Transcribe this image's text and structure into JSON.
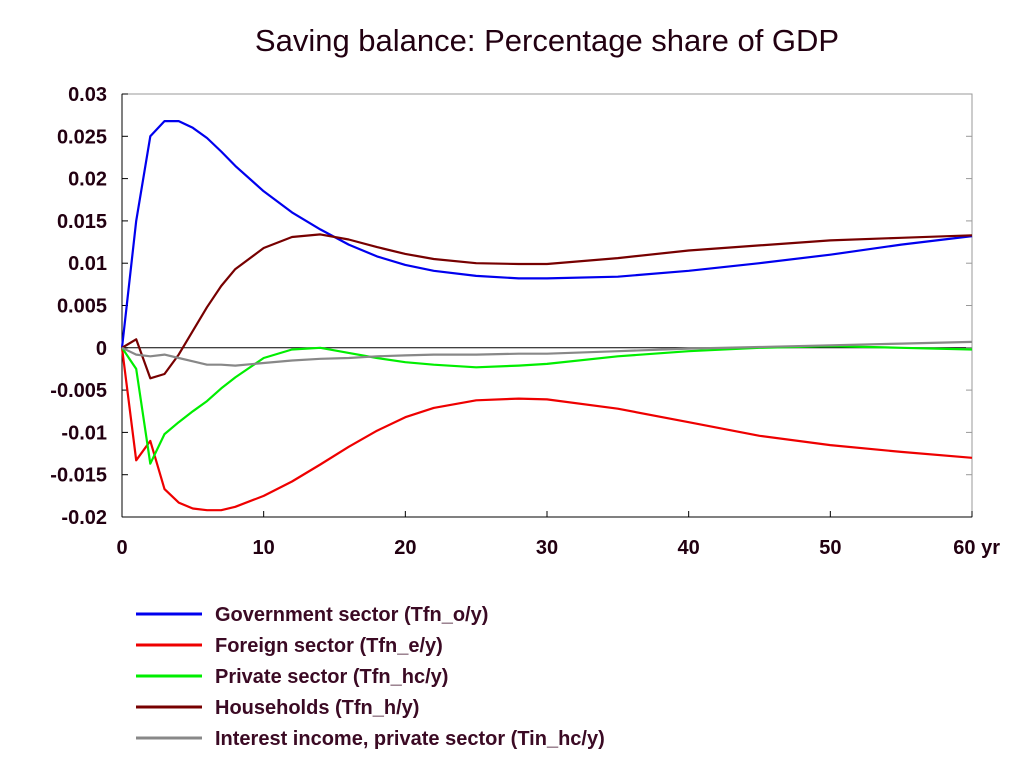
{
  "chart_data": {
    "type": "line",
    "title": "Saving balance: Percentage share of GDP",
    "xlabel": "",
    "ylabel": "",
    "xlim": [
      0,
      60
    ],
    "ylim": [
      -0.02,
      0.03
    ],
    "x_ticks": [
      0,
      10,
      20,
      30,
      40,
      50,
      60
    ],
    "x_tick_labels": [
      "0",
      "10",
      "20",
      "30",
      "40",
      "50",
      "60 yr"
    ],
    "y_ticks": [
      0.03,
      0.025,
      0.02,
      0.015,
      0.01,
      0.005,
      0,
      -0.005,
      -0.01,
      -0.015,
      -0.02
    ],
    "y_tick_labels": [
      "0.03",
      "0.025",
      "0.02",
      "0.015",
      "0.01",
      "0.005",
      "0",
      "-0.005",
      "-0.01",
      "-0.015",
      "-0.02"
    ],
    "grid": false,
    "zero_line": true,
    "legend_position": "bottom",
    "x": [
      0,
      1,
      2,
      3,
      4,
      5,
      6,
      7,
      8,
      10,
      12,
      14,
      16,
      18,
      20,
      22,
      25,
      28,
      30,
      35,
      40,
      45,
      50,
      55,
      60
    ],
    "series": [
      {
        "name": "Government sector (Tfn_o/y)",
        "color": "#0000ee",
        "values": [
          0.0,
          0.015,
          0.025,
          0.0268,
          0.0268,
          0.026,
          0.0248,
          0.0232,
          0.0215,
          0.0185,
          0.016,
          0.014,
          0.0122,
          0.0108,
          0.0098,
          0.0091,
          0.0085,
          0.0082,
          0.0082,
          0.0084,
          0.0091,
          0.01,
          0.011,
          0.0122,
          0.0132
        ]
      },
      {
        "name": "Foreign sector (Tfn_e/y)",
        "color": "#ee0000",
        "values": [
          0.0,
          -0.0133,
          -0.011,
          -0.0167,
          -0.0183,
          -0.019,
          -0.0192,
          -0.0192,
          -0.0188,
          -0.0175,
          -0.0158,
          -0.0138,
          -0.0117,
          -0.0098,
          -0.0082,
          -0.0071,
          -0.0062,
          -0.006,
          -0.0061,
          -0.0072,
          -0.0088,
          -0.0104,
          -0.0115,
          -0.0123,
          -0.013
        ]
      },
      {
        "name": "Private sector (Tfn_hc/y)",
        "color": "#00ee00",
        "values": [
          0.0,
          -0.0025,
          -0.0137,
          -0.0102,
          -0.0088,
          -0.0075,
          -0.0063,
          -0.0048,
          -0.0035,
          -0.0012,
          -0.0002,
          0.0,
          -0.0006,
          -0.0012,
          -0.0017,
          -0.002,
          -0.0023,
          -0.0021,
          -0.0019,
          -0.001,
          -0.0004,
          0.0,
          0.0002,
          0.0,
          -0.0002
        ]
      },
      {
        "name": "Households (Tfn_h/y)",
        "color": "#770000",
        "values": [
          0.0,
          0.001,
          -0.0036,
          -0.0031,
          -0.0008,
          0.002,
          0.0048,
          0.0073,
          0.0093,
          0.0118,
          0.0131,
          0.0134,
          0.0128,
          0.0119,
          0.0111,
          0.0105,
          0.01,
          0.0099,
          0.0099,
          0.0106,
          0.0115,
          0.0121,
          0.0127,
          0.013,
          0.0133
        ]
      },
      {
        "name": "Interest income, private sector (Tin_hc/y)",
        "color": "#888888",
        "values": [
          0.0,
          -0.0008,
          -0.001,
          -0.0008,
          -0.0012,
          -0.0016,
          -0.002,
          -0.002,
          -0.0021,
          -0.0018,
          -0.0015,
          -0.0013,
          -0.0012,
          -0.001,
          -0.0009,
          -0.0008,
          -0.0008,
          -0.0007,
          -0.0007,
          -0.0004,
          -0.0001,
          0.0001,
          0.0003,
          0.0005,
          0.0007
        ]
      }
    ]
  }
}
